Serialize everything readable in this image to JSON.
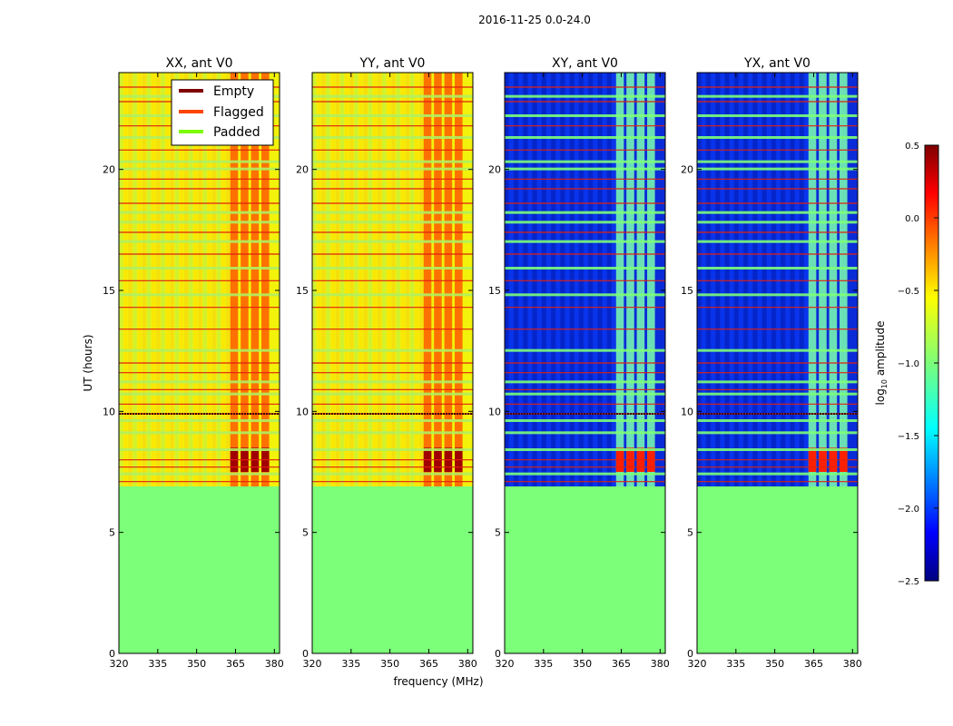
{
  "figure_title": "2016-11-25 0.0-24.0",
  "chart_data": {
    "type": "heatmap",
    "title": "2016-11-25 0.0-24.0",
    "xlabel": "frequency (MHz)",
    "ylabel": "UT (hours)",
    "xlim": [
      320,
      382
    ],
    "ylim": [
      0,
      24
    ],
    "xticks": [
      "320",
      "335",
      "350",
      "365",
      "380"
    ],
    "yticks": [
      "0",
      "5",
      "10",
      "15",
      "20"
    ],
    "xtick_values": [
      320,
      335,
      350,
      365,
      380
    ],
    "ytick_values": [
      0,
      5,
      10,
      15,
      20
    ],
    "panels": [
      {
        "title": "XX, ant V0",
        "kind": "auto"
      },
      {
        "title": "YY, ant V0",
        "kind": "auto"
      },
      {
        "title": "XY, ant V0",
        "kind": "cross"
      },
      {
        "title": "YX, ant V0",
        "kind": "cross"
      }
    ],
    "padded_below_ut": 6.9,
    "flag_bands_mhz": [
      [
        363,
        366
      ],
      [
        367,
        370
      ],
      [
        371,
        374
      ],
      [
        375,
        378
      ]
    ],
    "legend": {
      "placement": "upper-right of first panel",
      "entries": [
        {
          "label": "Empty",
          "color": "#800000"
        },
        {
          "label": "Flagged",
          "color": "#ff4500"
        },
        {
          "label": "Padded",
          "color": "#7cfc00"
        }
      ]
    },
    "colorbar": {
      "label": "log10 amplitude",
      "label_main": "log",
      "label_sub": "10",
      "label_tail": " amplitude",
      "range": [
        -2.5,
        0.5
      ],
      "ticks": [
        "0.5",
        "0.0",
        "−0.5",
        "−1.0",
        "−1.5",
        "−2.0",
        "−2.5"
      ],
      "tick_values": [
        0.5,
        0.0,
        -0.5,
        -1.0,
        -1.5,
        -2.0,
        -2.5
      ]
    }
  }
}
